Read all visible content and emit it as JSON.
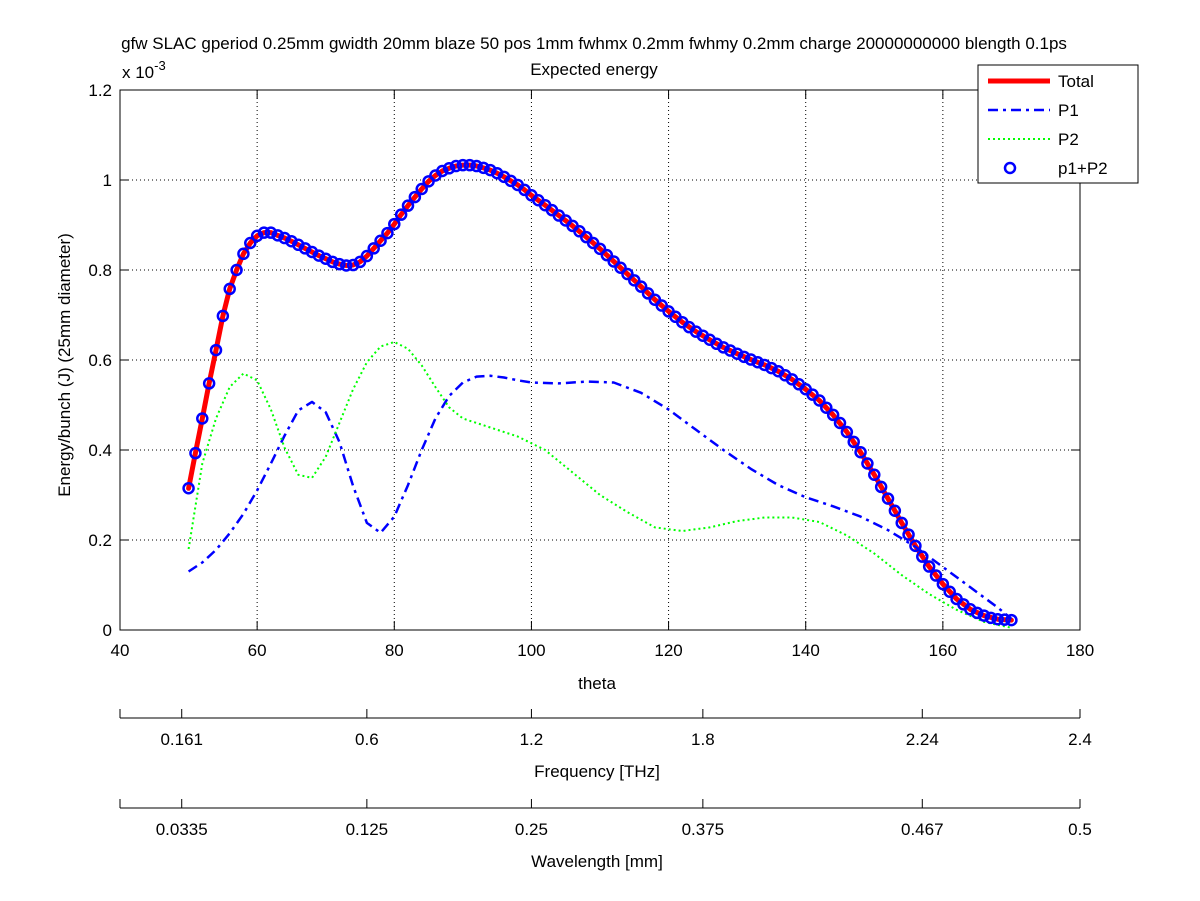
{
  "chart_data": {
    "type": "line",
    "title": "gfw SLAC gperiod 0.25mm gwidth 20mm blaze 50 pos 1mm fwhmx 0.2mm fwhmy 0.2mm charge 20000000000 blength 0.1ps",
    "subtitle": "Expected energy",
    "xlabel": "theta",
    "ylabel": "Energy/bunch (J) (25mm diameter)",
    "y_multiplier_base": "x 10",
    "y_multiplier_exp": "-3",
    "xlim": [
      40,
      180
    ],
    "ylim": [
      0,
      0.0012
    ],
    "xticks": [
      40,
      60,
      80,
      100,
      120,
      140,
      160,
      180
    ],
    "yticks": [
      0,
      0.0002,
      0.0004,
      0.0006,
      0.0008,
      0.001,
      0.0012
    ],
    "ytick_labels": [
      "0",
      "0.2",
      "0.4",
      "0.6",
      "0.8",
      "1",
      "1.2"
    ],
    "grid": true,
    "legend_position": "top-right",
    "secondary_axes": [
      {
        "label": "Frequency [THz]",
        "ticks": [
          {
            "theta": 40,
            "label": ""
          },
          {
            "theta": 49,
            "label": "0.161"
          },
          {
            "theta": 76,
            "label": "0.6"
          },
          {
            "theta": 100,
            "label": "1.2"
          },
          {
            "theta": 125,
            "label": "1.8"
          },
          {
            "theta": 157,
            "label": "2.24"
          },
          {
            "theta": 180,
            "label": "2.4"
          }
        ]
      },
      {
        "label": "Wavelength [mm]",
        "ticks": [
          {
            "theta": 40,
            "label": ""
          },
          {
            "theta": 49,
            "label": "0.0335"
          },
          {
            "theta": 76,
            "label": "0.125"
          },
          {
            "theta": 100,
            "label": "0.25"
          },
          {
            "theta": 125,
            "label": "0.375"
          },
          {
            "theta": 157,
            "label": "0.467"
          },
          {
            "theta": 180,
            "label": "0.5"
          }
        ]
      }
    ],
    "series": [
      {
        "name": "Total",
        "style": "solid",
        "color": "#ff0000",
        "x": [
          50,
          51,
          52,
          53,
          54,
          55,
          56,
          57,
          58,
          59,
          60,
          61,
          62,
          63,
          64,
          65,
          66,
          67,
          68,
          69,
          70,
          71,
          72,
          73,
          74,
          75,
          76,
          77,
          78,
          79,
          80,
          81,
          82,
          83,
          84,
          85,
          86,
          87,
          88,
          89,
          90,
          91,
          92,
          93,
          94,
          95,
          96,
          97,
          98,
          99,
          100,
          102,
          104,
          106,
          108,
          110,
          112,
          114,
          116,
          118,
          120,
          122,
          124,
          126,
          128,
          130,
          132,
          134,
          136,
          138,
          140,
          142,
          144,
          146,
          148,
          150,
          152,
          154,
          156,
          158,
          160,
          162,
          164,
          166,
          168,
          170
        ],
        "y": [
          0.000315,
          0.000393,
          0.00047,
          0.000548,
          0.000622,
          0.000698,
          0.000758,
          0.0008,
          0.000836,
          0.00086,
          0.000876,
          0.000883,
          0.000883,
          0.000877,
          0.000871,
          0.000864,
          0.000856,
          0.000848,
          0.00084,
          0.000832,
          0.000825,
          0.000818,
          0.000813,
          0.00081,
          0.000811,
          0.000818,
          0.000831,
          0.000848,
          0.000865,
          0.000882,
          0.000902,
          0.000923,
          0.000943,
          0.000962,
          0.00098,
          0.000997,
          0.00101,
          0.00102,
          0.001026,
          0.001031,
          0.001033,
          0.001033,
          0.001031,
          0.001027,
          0.001022,
          0.001015,
          0.001007,
          0.000998,
          0.000989,
          0.000978,
          0.000966,
          0.000944,
          0.000921,
          0.000898,
          0.000873,
          0.000847,
          0.000819,
          0.000791,
          0.000763,
          0.000734,
          0.000708,
          0.000684,
          0.000663,
          0.000645,
          0.000628,
          0.000614,
          0.000601,
          0.000589,
          0.000575,
          0.000557,
          0.000535,
          0.00051,
          0.000478,
          0.00044,
          0.000395,
          0.000345,
          0.000292,
          0.000238,
          0.000187,
          0.000141,
          0.000102,
          6.9e-05,
          4.6e-05,
          3.2e-05,
          2.4e-05,
          2.2e-05
        ]
      },
      {
        "name": "P1",
        "style": "dashdot",
        "color": "#0000ff",
        "x": [
          50,
          52,
          54,
          56,
          58,
          60,
          62,
          64,
          66,
          68,
          70,
          72,
          74,
          76,
          78,
          80,
          82,
          84,
          86,
          88,
          90,
          92,
          94,
          96,
          98,
          100,
          104,
          108,
          112,
          116,
          120,
          124,
          128,
          132,
          136,
          140,
          144,
          148,
          152,
          156,
          160,
          164,
          168,
          170
        ],
        "y": [
          0.00013,
          0.00015,
          0.000178,
          0.000215,
          0.000258,
          0.00031,
          0.00037,
          0.000432,
          0.000488,
          0.000507,
          0.000484,
          0.000418,
          0.00032,
          0.000238,
          0.000216,
          0.000252,
          0.000322,
          0.0004,
          0.00047,
          0.00052,
          0.00055,
          0.000563,
          0.000565,
          0.000561,
          0.000555,
          0.00055,
          0.000548,
          0.000552,
          0.00055,
          0.000527,
          0.00049,
          0.000445,
          0.0004,
          0.000358,
          0.000322,
          0.000295,
          0.000275,
          0.000252,
          0.000222,
          0.000185,
          0.00014,
          9.5e-05,
          5e-05,
          2.5e-05
        ]
      },
      {
        "name": "P2",
        "style": "dotted",
        "color": "#00ff00",
        "x": [
          50,
          52,
          54,
          56,
          58,
          60,
          62,
          64,
          66,
          68,
          70,
          72,
          74,
          76,
          78,
          80,
          82,
          84,
          86,
          88,
          90,
          94,
          98,
          102,
          106,
          110,
          114,
          118,
          122,
          126,
          130,
          134,
          138,
          142,
          146,
          150,
          154,
          158,
          162,
          166,
          170
        ],
        "y": [
          0.00018,
          0.00037,
          0.00047,
          0.00054,
          0.00057,
          0.000555,
          0.00049,
          0.000405,
          0.000345,
          0.000338,
          0.000385,
          0.00046,
          0.000535,
          0.000595,
          0.00063,
          0.00064,
          0.000625,
          0.000588,
          0.00054,
          0.000495,
          0.00047,
          0.00045,
          0.00043,
          0.0004,
          0.00035,
          0.0003,
          0.000262,
          0.000228,
          0.00022,
          0.000228,
          0.000242,
          0.00025,
          0.00025,
          0.00024,
          0.00021,
          0.00017,
          0.000122,
          8e-05,
          4.5e-05,
          1.8e-05,
          5e-06
        ]
      },
      {
        "name": "p1+P2",
        "style": "markers",
        "color": "#0000ff",
        "x": [
          50,
          51,
          52,
          53,
          54,
          55,
          56,
          57,
          58,
          59,
          60,
          61,
          62,
          63,
          64,
          65,
          66,
          67,
          68,
          69,
          70,
          71,
          72,
          73,
          74,
          75,
          76,
          77,
          78,
          79,
          80,
          81,
          82,
          83,
          84,
          85,
          86,
          87,
          88,
          89,
          90,
          91,
          92,
          93,
          94,
          95,
          96,
          97,
          98,
          99,
          100,
          101,
          102,
          103,
          104,
          105,
          106,
          107,
          108,
          109,
          110,
          111,
          112,
          113,
          114,
          115,
          116,
          117,
          118,
          119,
          120,
          121,
          122,
          123,
          124,
          125,
          126,
          127,
          128,
          129,
          130,
          131,
          132,
          133,
          134,
          135,
          136,
          137,
          138,
          139,
          140,
          141,
          142,
          143,
          144,
          145,
          146,
          147,
          148,
          149,
          150,
          151,
          152,
          153,
          154,
          155,
          156,
          157,
          158,
          159,
          160,
          161,
          162,
          163,
          164,
          165,
          166,
          167,
          168,
          169,
          170
        ],
        "y": [
          0.000315,
          0.000393,
          0.00047,
          0.000548,
          0.000622,
          0.000698,
          0.000758,
          0.0008,
          0.000836,
          0.00086,
          0.000876,
          0.000883,
          0.000883,
          0.000877,
          0.000871,
          0.000864,
          0.000856,
          0.000848,
          0.00084,
          0.000832,
          0.000825,
          0.000818,
          0.000813,
          0.00081,
          0.000811,
          0.000818,
          0.000831,
          0.000848,
          0.000865,
          0.000882,
          0.000902,
          0.000923,
          0.000943,
          0.000962,
          0.00098,
          0.000997,
          0.00101,
          0.00102,
          0.001026,
          0.001031,
          0.001033,
          0.001033,
          0.001031,
          0.001027,
          0.001022,
          0.001015,
          0.001007,
          0.000998,
          0.000989,
          0.000978,
          0.000966,
          0.000955,
          0.000944,
          0.000933,
          0.000921,
          0.00091,
          0.000898,
          0.000886,
          0.000873,
          0.00086,
          0.000847,
          0.000833,
          0.000819,
          0.000805,
          0.000791,
          0.000777,
          0.000763,
          0.000748,
          0.000734,
          0.000721,
          0.000708,
          0.000696,
          0.000684,
          0.000673,
          0.000663,
          0.000654,
          0.000645,
          0.000636,
          0.000628,
          0.000621,
          0.000614,
          0.000607,
          0.000601,
          0.000595,
          0.000589,
          0.000582,
          0.000575,
          0.000566,
          0.000557,
          0.000546,
          0.000535,
          0.000523,
          0.00051,
          0.000494,
          0.000478,
          0.00046,
          0.00044,
          0.000418,
          0.000395,
          0.00037,
          0.000345,
          0.000318,
          0.000292,
          0.000265,
          0.000238,
          0.000212,
          0.000187,
          0.000163,
          0.000141,
          0.000121,
          0.000102,
          8.5e-05,
          6.9e-05,
          5.7e-05,
          4.6e-05,
          3.8e-05,
          3.2e-05,
          2.7e-05,
          2.4e-05,
          2.3e-05,
          2.2e-05
        ]
      }
    ]
  }
}
